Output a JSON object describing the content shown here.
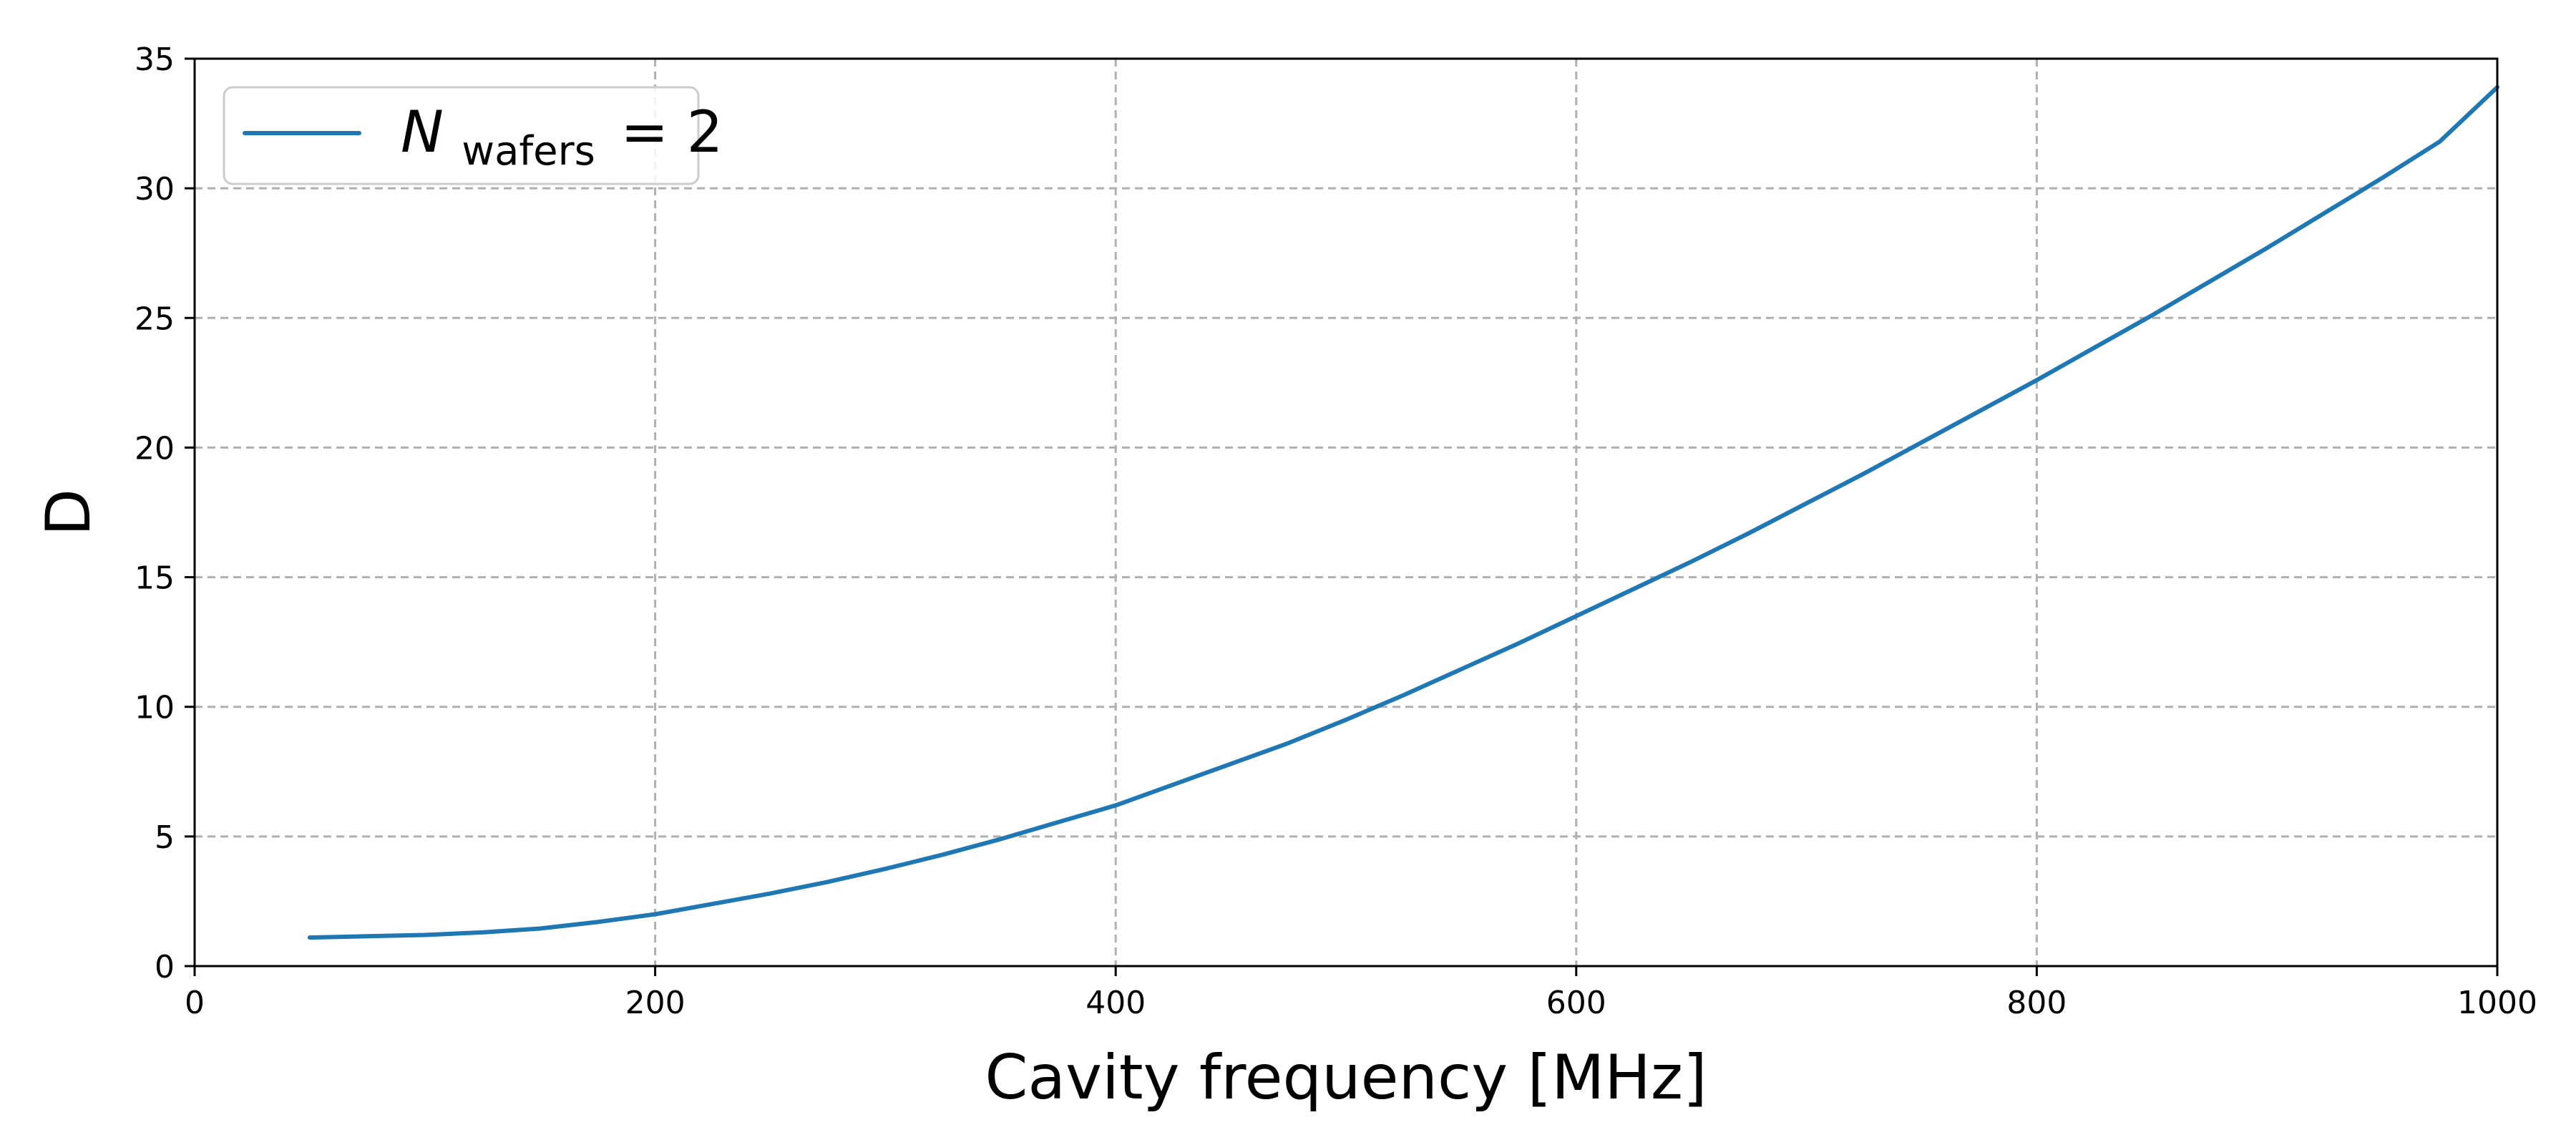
{
  "chart_data": {
    "type": "line",
    "xlabel": "Cavity frequency [MHz]",
    "ylabel": "D",
    "xlim": [
      0,
      1000
    ],
    "ylim": [
      0,
      35
    ],
    "x_ticks": [
      0,
      200,
      400,
      600,
      800,
      1000
    ],
    "y_ticks": [
      0,
      5,
      10,
      15,
      20,
      25,
      30,
      35
    ],
    "x_tick_labels": [
      "0",
      "200",
      "400",
      "600",
      "800",
      "1000"
    ],
    "y_tick_labels": [
      "0",
      "5",
      "10",
      "15",
      "20",
      "25",
      "30",
      "35"
    ],
    "grid": true,
    "legend_position": "top-left",
    "legend": {
      "symbol": "N",
      "subscript": "wafers",
      "relation": "= 2"
    },
    "series": [
      {
        "name": "N_wafers = 2",
        "color": "#1f77b4",
        "x": [
          50,
          75,
          100,
          125,
          150,
          175,
          200,
          225,
          250,
          275,
          300,
          325,
          350,
          375,
          400,
          425,
          450,
          475,
          500,
          525,
          550,
          575,
          600,
          625,
          650,
          675,
          700,
          725,
          750,
          775,
          800,
          825,
          850,
          875,
          900,
          925,
          950,
          975,
          1000
        ],
        "y": [
          1.1,
          1.15,
          1.2,
          1.3,
          1.45,
          1.7,
          2.0,
          2.4,
          2.8,
          3.25,
          3.75,
          4.3,
          4.9,
          5.55,
          6.2,
          7.0,
          7.8,
          8.6,
          9.5,
          10.45,
          11.45,
          12.45,
          13.5,
          14.55,
          15.6,
          16.7,
          17.85,
          19.0,
          20.2,
          21.4,
          22.6,
          23.85,
          25.1,
          26.4,
          27.7,
          29.05,
          30.4,
          31.8,
          33.9
        ]
      }
    ]
  }
}
